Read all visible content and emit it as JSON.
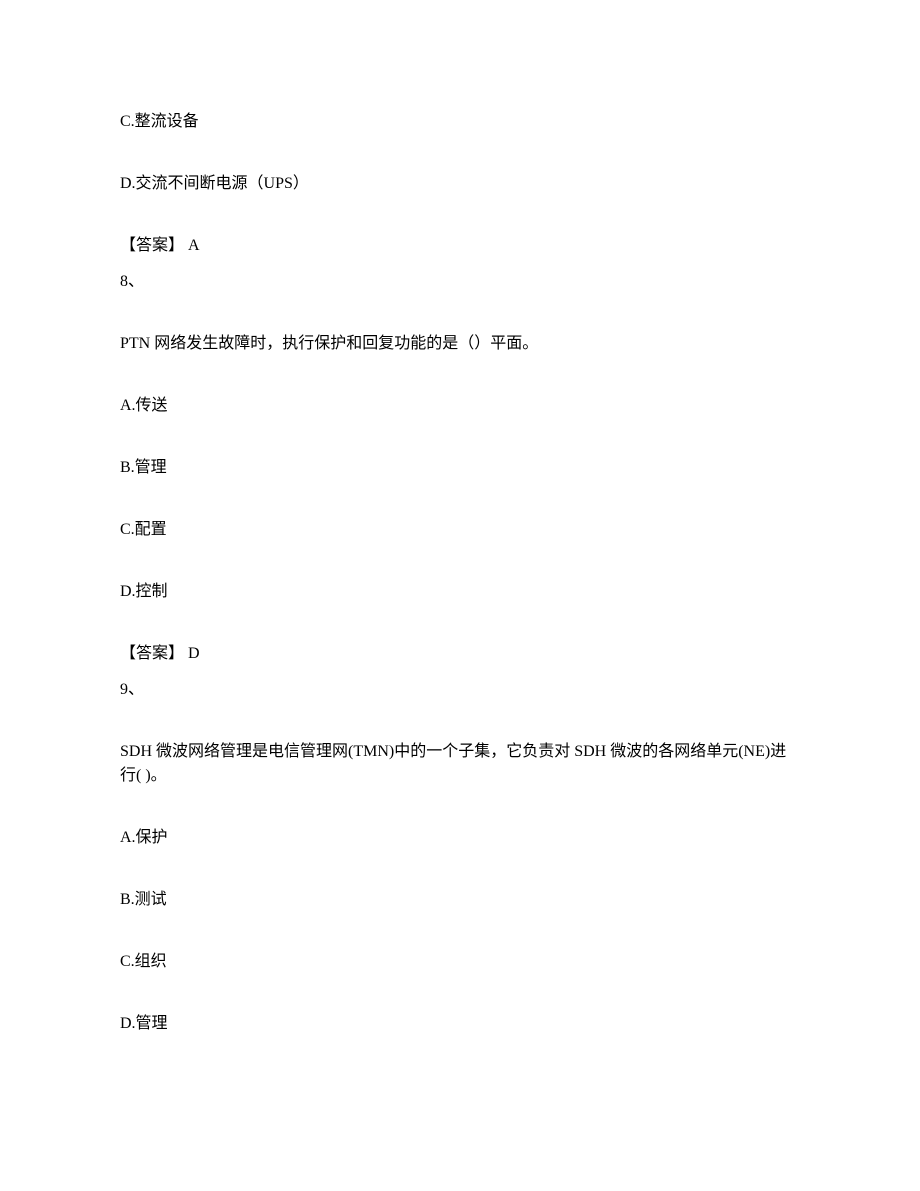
{
  "q7": {
    "optC": "C.整流设备",
    "optD": "D.交流不间断电源（UPS）",
    "answerLabel": "【答案】  A"
  },
  "q8": {
    "num": "8、",
    "stem": "PTN 网络发生故障时，执行保护和回复功能的是（）平面。",
    "optA": "A.传送",
    "optB": "B.管理",
    "optC": "C.配置",
    "optD": "D.控制",
    "answerLabel": "【答案】  D"
  },
  "q9": {
    "num": "9、",
    "stem": "SDH 微波网络管理是电信管理网(TMN)中的一个子集，它负责对 SDH 微波的各网络单元(NE)进行( )。",
    "optA": "A.保护",
    "optB": "B.测试",
    "optC": "C.组织",
    "optD": "D.管理"
  }
}
